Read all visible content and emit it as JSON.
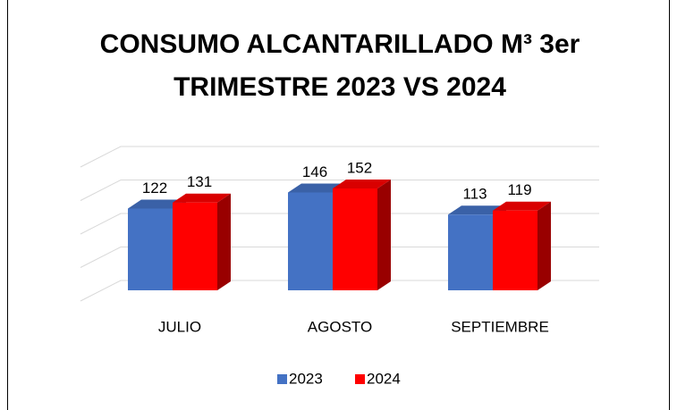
{
  "chart_data": {
    "type": "bar3d",
    "title": "CONSUMO ALCANTARILLADO M³ 3er TRIMESTRE 2023 VS 2024",
    "categories": [
      "JULIO",
      "AGOSTO",
      "SEPTIEMBRE"
    ],
    "series": [
      {
        "name": "2023",
        "color": "#4472c4",
        "values": [
          122,
          146,
          113
        ]
      },
      {
        "name": "2024",
        "color": "#ff0000",
        "values": [
          131,
          152,
          119
        ]
      }
    ],
    "ylim": [
      0,
      200
    ],
    "yticks": [
      0,
      50,
      100,
      150,
      200
    ],
    "grid": true,
    "legend": "bottom"
  }
}
